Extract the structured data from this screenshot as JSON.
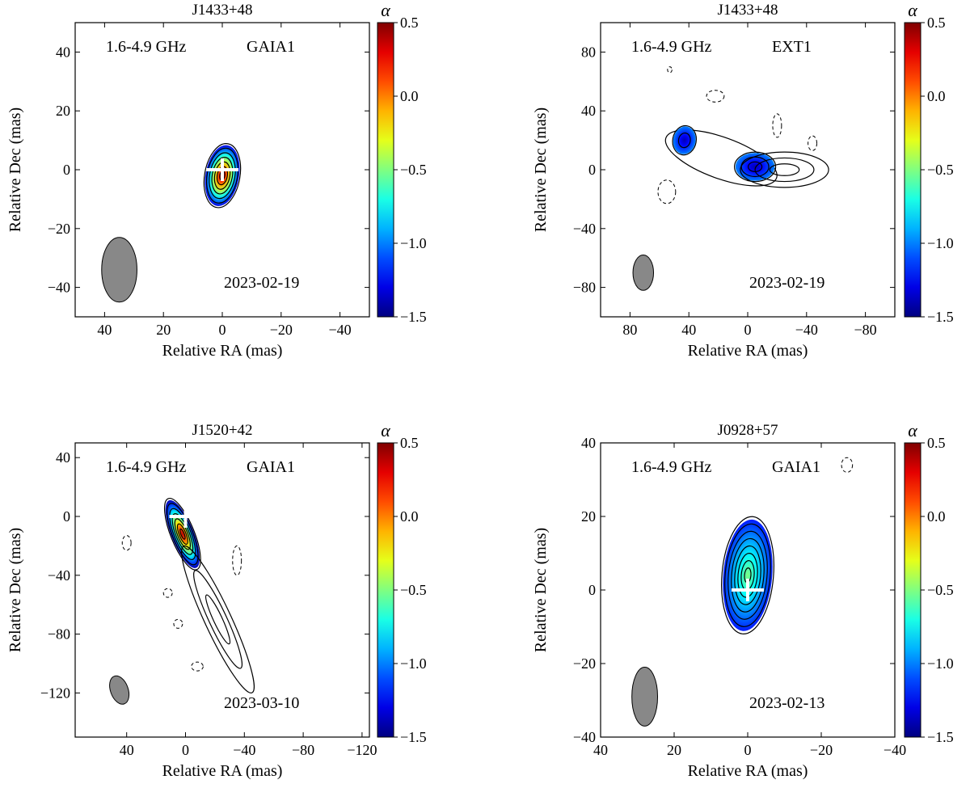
{
  "chart_data": [
    {
      "type": "heatmap",
      "title": "J1433+48",
      "freq_label": "1.6-4.9 GHz",
      "component_label": "GAIA1",
      "date_label": "2023-02-19",
      "xlabel": "Relative RA (mas)",
      "ylabel": "Relative Dec (mas)",
      "xlim": [
        50,
        -50
      ],
      "ylim": [
        -50,
        50
      ],
      "xticks": [
        40,
        20,
        0,
        -20,
        -40
      ],
      "yticks": [
        -40,
        -20,
        0,
        20,
        40
      ],
      "xtick_labels": [
        "40",
        "20",
        "0",
        "−20",
        "−40"
      ],
      "ytick_labels": [
        "−40",
        "−20",
        "0",
        "20",
        "40"
      ],
      "colorbar": {
        "label": "α",
        "range": [
          -1.5,
          0.5
        ],
        "ticks": [
          0.5,
          0.0,
          -0.5,
          -1.0,
          -1.5
        ],
        "tick_labels": [
          "0.5",
          "0.0",
          "−0.5",
          "−1.0",
          "−1.5"
        ],
        "colormap": "jet"
      },
      "beam": {
        "x": 35,
        "y": -34,
        "major": 11,
        "minor": 6,
        "pa_deg": 0
      },
      "marker": {
        "x": 0,
        "y": 0
      },
      "components": [
        {
          "x": 0,
          "y": -2,
          "rx": 6,
          "ry": 11,
          "pa_deg": 10,
          "levels": 7,
          "alpha_core": 0.5,
          "alpha_edge": -1.3
        }
      ],
      "dashed_contours": []
    },
    {
      "type": "heatmap",
      "title": "J1433+48",
      "freq_label": "1.6-4.9 GHz",
      "component_label": "EXT1",
      "date_label": "2023-02-19",
      "xlabel": "Relative RA (mas)",
      "ylabel": "Relative Dec (mas)",
      "xlim": [
        100,
        -100
      ],
      "ylim": [
        -100,
        100
      ],
      "xticks": [
        80,
        40,
        0,
        -40,
        -80
      ],
      "yticks": [
        -80,
        -40,
        0,
        40,
        80
      ],
      "xtick_labels": [
        "80",
        "40",
        "0",
        "−40",
        "−80"
      ],
      "ytick_labels": [
        "−80",
        "−40",
        "0",
        "40",
        "80"
      ],
      "colorbar": {
        "label": "α",
        "range": [
          -1.5,
          0.5
        ],
        "ticks": [
          0.5,
          0.0,
          -0.5,
          -1.0,
          -1.5
        ],
        "tick_labels": [
          "0.5",
          "0.0",
          "−0.5",
          "−1.0",
          "−1.5"
        ],
        "colormap": "jet"
      },
      "beam": {
        "x": 71,
        "y": -70,
        "major": 12,
        "minor": 7,
        "pa_deg": 0
      },
      "marker": null,
      "components": [
        {
          "x": 18,
          "y": 8,
          "rx": 40,
          "ry": 14,
          "pa_deg": 20,
          "levels": 1,
          "alpha_core": null,
          "alpha_edge": null
        },
        {
          "x": 43,
          "y": 20,
          "rx": 8,
          "ry": 10,
          "pa_deg": 10,
          "levels": 2,
          "alpha_core": -1.4,
          "alpha_edge": -1.0
        },
        {
          "x": -5,
          "y": 2,
          "rx": 14,
          "ry": 10,
          "pa_deg": 0,
          "levels": 3,
          "alpha_core": -1.4,
          "alpha_edge": -1.0
        },
        {
          "x": -25,
          "y": 0,
          "rx": 30,
          "ry": 12,
          "pa_deg": 0,
          "levels": 3,
          "alpha_core": null,
          "alpha_edge": null
        }
      ],
      "dashed_contours": [
        {
          "x": 53,
          "y": 68,
          "rx": 1.5,
          "ry": 2
        },
        {
          "x": 22,
          "y": 50,
          "rx": 6,
          "ry": 4
        },
        {
          "x": -20,
          "y": 30,
          "rx": 3,
          "ry": 8
        },
        {
          "x": -44,
          "y": 18,
          "rx": 3,
          "ry": 5
        },
        {
          "x": 55,
          "y": -15,
          "rx": 6,
          "ry": 8
        }
      ]
    },
    {
      "type": "heatmap",
      "title": "J1520+42",
      "freq_label": "1.6-4.9 GHz",
      "component_label": "GAIA1",
      "date_label": "2023-03-10",
      "xlabel": "Relative RA (mas)",
      "ylabel": "Relative Dec (mas)",
      "xlim": [
        75,
        -125
      ],
      "ylim": [
        -150,
        50
      ],
      "xticks": [
        40,
        0,
        -40,
        -80,
        -120
      ],
      "yticks": [
        -120,
        -80,
        -40,
        0,
        40
      ],
      "xtick_labels": [
        "40",
        "0",
        "−40",
        "−80",
        "−120"
      ],
      "ytick_labels": [
        "−120",
        "−80",
        "−40",
        "0",
        "40"
      ],
      "colorbar": {
        "label": "α",
        "range": [
          -1.5,
          0.5
        ],
        "ticks": [
          0.5,
          0.0,
          -0.5,
          -1.0,
          -1.5
        ],
        "tick_labels": [
          "0.5",
          "0.0",
          "−0.5",
          "−1.0",
          "−1.5"
        ],
        "colormap": "jet"
      },
      "beam": {
        "x": 45,
        "y": -118,
        "major": 10,
        "minor": 6,
        "pa_deg": -20
      },
      "marker": {
        "x": 0,
        "y": 0
      },
      "components": [
        {
          "x": 2,
          "y": -12,
          "rx": 8,
          "ry": 26,
          "pa_deg": -22,
          "levels": 7,
          "alpha_core": 0.4,
          "alpha_edge": -1.4
        },
        {
          "x": -22,
          "y": -70,
          "rx": 9,
          "ry": 55,
          "pa_deg": -25,
          "levels": 3,
          "alpha_core": null,
          "alpha_edge": null
        }
      ],
      "dashed_contours": [
        {
          "x": 40,
          "y": -18,
          "rx": 3,
          "ry": 5
        },
        {
          "x": -35,
          "y": -30,
          "rx": 3,
          "ry": 10
        },
        {
          "x": 12,
          "y": -52,
          "rx": 3,
          "ry": 3
        },
        {
          "x": 5,
          "y": -73,
          "rx": 3,
          "ry": 3
        },
        {
          "x": -8,
          "y": -102,
          "rx": 4,
          "ry": 3
        }
      ]
    },
    {
      "type": "heatmap",
      "title": "J0928+57",
      "freq_label": "1.6-4.9 GHz",
      "component_label": "GAIA1",
      "date_label": "2023-02-13",
      "xlabel": "Relative RA (mas)",
      "ylabel": "Relative Dec (mas)",
      "xlim": [
        40,
        -40
      ],
      "ylim": [
        -40,
        40
      ],
      "xticks": [
        40,
        20,
        0,
        -20,
        -40
      ],
      "yticks": [
        -40,
        -20,
        0,
        20,
        40
      ],
      "xtick_labels": [
        "40",
        "20",
        "0",
        "−20",
        "−40"
      ],
      "ytick_labels": [
        "−40",
        "−20",
        "0",
        "20",
        "40"
      ],
      "colorbar": {
        "label": "α",
        "range": [
          -1.5,
          0.5
        ],
        "ticks": [
          0.5,
          0.0,
          -0.5,
          -1.0,
          -1.5
        ],
        "tick_labels": [
          "0.5",
          "0.0",
          "−0.5",
          "−1.0",
          "−1.5"
        ],
        "colormap": "jet"
      },
      "beam": {
        "x": 28,
        "y": -29,
        "major": 8,
        "minor": 3.5,
        "pa_deg": 0
      },
      "marker": {
        "x": 0,
        "y": 0
      },
      "components": [
        {
          "x": 0,
          "y": 4,
          "rx": 7,
          "ry": 16,
          "pa_deg": 5,
          "levels": 8,
          "alpha_core": -0.5,
          "alpha_edge": -1.2
        }
      ],
      "dashed_contours": [
        {
          "x": -27,
          "y": 34,
          "rx": 1.5,
          "ry": 2
        }
      ]
    }
  ]
}
